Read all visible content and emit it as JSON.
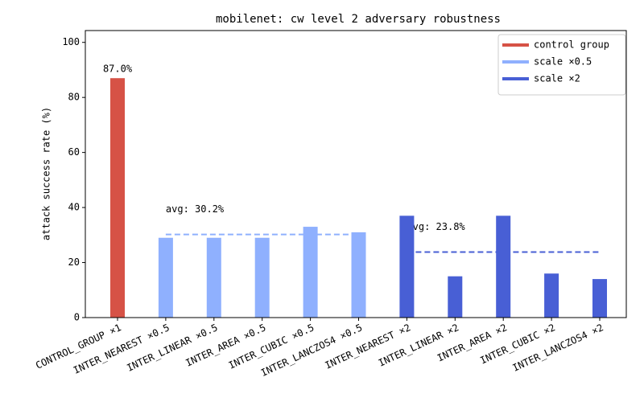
{
  "chart_data": {
    "type": "bar",
    "title": "mobilenet: cw level 2 adversary robustness",
    "ylabel": "attack success rate (%)",
    "categories": [
      "CONTROL_GROUP ×1",
      "INTER_NEAREST ×0.5",
      "INTER_LINEAR ×0.5",
      "INTER_AREA ×0.5",
      "INTER_CUBIC ×0.5",
      "INTER_LANCZOS4 ×0.5",
      "INTER_NEAREST ×2",
      "INTER_LINEAR ×2",
      "INTER_AREA ×2",
      "INTER_CUBIC ×2",
      "INTER_LANCZOS4 ×2"
    ],
    "series": [
      {
        "name": "control group",
        "color": "#d65246",
        "values": [
          87,
          null,
          null,
          null,
          null,
          null,
          null,
          null,
          null,
          null,
          null
        ],
        "value_labels": [
          "87.0%",
          null,
          null,
          null,
          null,
          null,
          null,
          null,
          null,
          null,
          null
        ]
      },
      {
        "name": "scale ×0.5",
        "color": "#8fb0fe",
        "values": [
          null,
          29,
          29,
          29,
          33,
          31,
          null,
          null,
          null,
          null,
          null
        ],
        "avg": {
          "value": 30.2,
          "label": "avg: 30.2%"
        }
      },
      {
        "name": "scale ×2",
        "color": "#485fd5",
        "values": [
          null,
          null,
          null,
          null,
          null,
          null,
          37,
          15,
          37,
          16,
          14
        ],
        "avg": {
          "value": 23.8,
          "label": "avg: 23.8%"
        }
      }
    ],
    "ylim": [
      0,
      104.3
    ],
    "yticks": [
      0,
      20,
      40,
      60,
      80,
      100
    ],
    "legend": "upper right"
  }
}
